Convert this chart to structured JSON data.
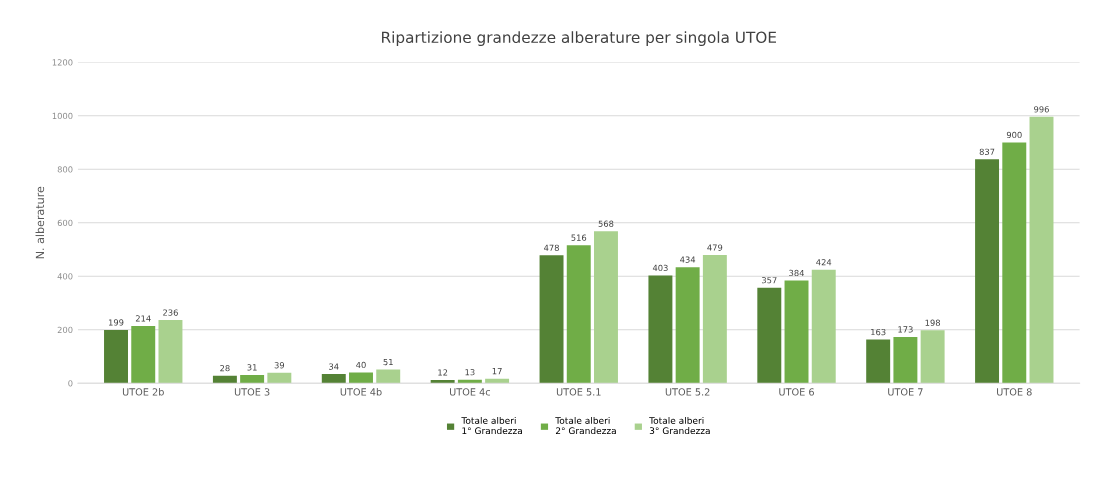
{
  "chart_data": {
    "type": "bar",
    "title": "Ripartizione grandezze alberature per singola UTOE",
    "ylabel": "N. alberature",
    "categories": [
      "UTOE 2b",
      "UTOE 3",
      "UTOE 4b",
      "UTOE 4c",
      "UTOE 5.1",
      "UTOE 5.2",
      "UTOE 6",
      "UTOE 7",
      "UTOE 8"
    ],
    "series": [
      {
        "name": "Totale alberi\n1° Grandezza",
        "color": "#548235",
        "values": [
          199,
          28,
          34,
          12,
          478,
          403,
          357,
          163,
          837
        ]
      },
      {
        "name": "Totale alberi\n2° Grandezza",
        "color": "#70ad47",
        "values": [
          214,
          31,
          40,
          13,
          516,
          434,
          384,
          173,
          900
        ]
      },
      {
        "name": "Totale alberi\n3° Grandezza",
        "color": "#a9d18e",
        "values": [
          236,
          39,
          51,
          17,
          568,
          479,
          424,
          198,
          996
        ]
      }
    ],
    "ylim": [
      0,
      1200
    ],
    "yticks": [
      0,
      200,
      400,
      600,
      800,
      1000,
      1200
    ],
    "grid": "y",
    "legend": "bottom",
    "data_labels": true
  }
}
